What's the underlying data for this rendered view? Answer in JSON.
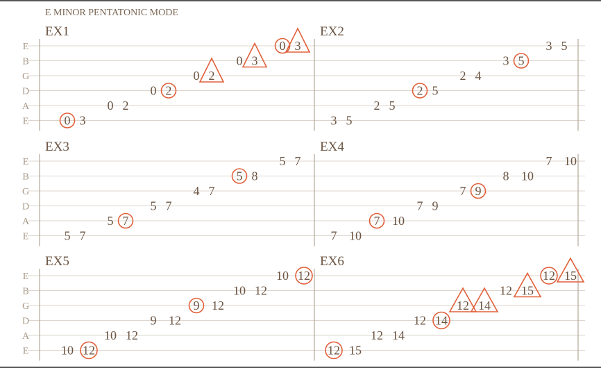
{
  "title": "E MINOR PENTATONIC MODE",
  "strings": [
    "E",
    "B",
    "G",
    "D",
    "A",
    "E"
  ],
  "colors": {
    "text": "#6b5442",
    "label": "#a89888",
    "staff": "#ddd5cd",
    "bar": "#b3a698",
    "accent": "#e0603a"
  },
  "exercises": [
    {
      "label": "EX1",
      "notes": [
        [
          [
            "0",
            "circle"
          ],
          [
            "3",
            ""
          ]
        ],
        [
          [
            "0",
            ""
          ],
          [
            "2",
            ""
          ]
        ],
        [
          [
            "0",
            ""
          ],
          [
            "2",
            "circle"
          ]
        ],
        [
          [
            "0",
            ""
          ],
          [
            "2",
            "triangle"
          ]
        ],
        [
          [
            "0",
            ""
          ],
          [
            "3",
            "triangle"
          ]
        ],
        [
          [
            "0",
            "circle"
          ],
          [
            "3",
            "triangle"
          ]
        ]
      ]
    },
    {
      "label": "EX2",
      "notes": [
        [
          [
            "3",
            ""
          ],
          [
            "5",
            ""
          ]
        ],
        [
          [
            "2",
            ""
          ],
          [
            "5",
            ""
          ]
        ],
        [
          [
            "2",
            "circle"
          ],
          [
            "5",
            ""
          ]
        ],
        [
          [
            "2",
            ""
          ],
          [
            "4",
            ""
          ]
        ],
        [
          [
            "3",
            ""
          ],
          [
            "5",
            "circle"
          ]
        ],
        [
          [
            "3",
            ""
          ],
          [
            "5",
            ""
          ]
        ]
      ]
    },
    {
      "label": "EX3",
      "notes": [
        [
          [
            "5",
            ""
          ],
          [
            "7",
            ""
          ]
        ],
        [
          [
            "5",
            ""
          ],
          [
            "7",
            "circle"
          ]
        ],
        [
          [
            "5",
            ""
          ],
          [
            "7",
            ""
          ]
        ],
        [
          [
            "4",
            ""
          ],
          [
            "7",
            ""
          ]
        ],
        [
          [
            "5",
            "circle"
          ],
          [
            "8",
            ""
          ]
        ],
        [
          [
            "5",
            ""
          ],
          [
            "7",
            ""
          ]
        ]
      ]
    },
    {
      "label": "EX4",
      "notes": [
        [
          [
            "7",
            ""
          ],
          [
            "10",
            ""
          ]
        ],
        [
          [
            "7",
            "circle"
          ],
          [
            "10",
            ""
          ]
        ],
        [
          [
            "7",
            ""
          ],
          [
            "9",
            ""
          ]
        ],
        [
          [
            "7",
            ""
          ],
          [
            "9",
            "circle"
          ]
        ],
        [
          [
            "8",
            ""
          ],
          [
            "10",
            ""
          ]
        ],
        [
          [
            "7",
            ""
          ],
          [
            "10",
            ""
          ]
        ]
      ]
    },
    {
      "label": "EX5",
      "notes": [
        [
          [
            "10",
            ""
          ],
          [
            "12",
            "circle"
          ]
        ],
        [
          [
            "10",
            ""
          ],
          [
            "12",
            ""
          ]
        ],
        [
          [
            "9",
            ""
          ],
          [
            "12",
            ""
          ]
        ],
        [
          [
            "9",
            "circle"
          ],
          [
            "12",
            ""
          ]
        ],
        [
          [
            "10",
            ""
          ],
          [
            "12",
            ""
          ]
        ],
        [
          [
            "10",
            ""
          ],
          [
            "12",
            "circle"
          ]
        ]
      ]
    },
    {
      "label": "EX6",
      "notes": [
        [
          [
            "12",
            "circle"
          ],
          [
            "15",
            ""
          ]
        ],
        [
          [
            "12",
            ""
          ],
          [
            "14",
            ""
          ]
        ],
        [
          [
            "12",
            ""
          ],
          [
            "14",
            "circle"
          ]
        ],
        [
          [
            "12",
            "triangle"
          ],
          [
            "14",
            "triangle"
          ]
        ],
        [
          [
            "12",
            ""
          ],
          [
            "15",
            "triangle"
          ]
        ],
        [
          [
            "12",
            "circle"
          ],
          [
            "15",
            "triangle"
          ]
        ]
      ]
    }
  ]
}
